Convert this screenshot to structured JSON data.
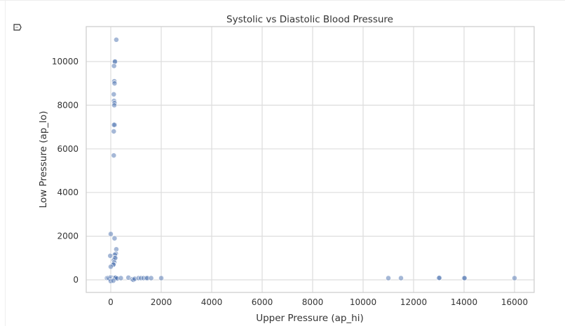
{
  "chart_data": {
    "type": "scatter",
    "title": "Systolic vs Diastolic Blood Pressure",
    "xlabel": "Upper Pressure (ap_hi)",
    "ylabel": "Low Pressure (ap_lo)",
    "xlim": [
      -1000,
      17000
    ],
    "ylim": [
      -600,
      11500
    ],
    "xticks": [
      0,
      2000,
      4000,
      6000,
      8000,
      10000,
      12000,
      14000,
      16000
    ],
    "yticks": [
      0,
      2000,
      4000,
      6000,
      8000,
      10000
    ],
    "grid": true,
    "color": "#4c72b0",
    "points": [
      [
        220,
        11000
      ],
      [
        150,
        10000
      ],
      [
        170,
        10000
      ],
      [
        130,
        9800
      ],
      [
        140,
        9100
      ],
      [
        150,
        9000
      ],
      [
        120,
        8500
      ],
      [
        130,
        8200
      ],
      [
        150,
        8100
      ],
      [
        140,
        8000
      ],
      [
        160,
        7100
      ],
      [
        130,
        7100
      ],
      [
        120,
        6800
      ],
      [
        120,
        5700
      ],
      [
        0,
        2100
      ],
      [
        150,
        1900
      ],
      [
        220,
        1400
      ],
      [
        200,
        1200
      ],
      [
        160,
        1150
      ],
      [
        -20,
        1100
      ],
      [
        150,
        1000
      ],
      [
        120,
        900
      ],
      [
        180,
        1000
      ],
      [
        140,
        800
      ],
      [
        120,
        700
      ],
      [
        100,
        700
      ],
      [
        0,
        600
      ],
      [
        -150,
        80
      ],
      [
        -100,
        80
      ],
      [
        -50,
        60
      ],
      [
        0,
        120
      ],
      [
        50,
        100
      ],
      [
        100,
        90
      ],
      [
        140,
        80
      ],
      [
        160,
        100
      ],
      [
        180,
        80
      ],
      [
        200,
        100
      ],
      [
        250,
        60
      ],
      [
        0,
        -60
      ],
      [
        100,
        -40
      ],
      [
        400,
        80
      ],
      [
        700,
        100
      ],
      [
        850,
        30
      ],
      [
        900,
        0
      ],
      [
        950,
        50
      ],
      [
        1100,
        80
      ],
      [
        1200,
        80
      ],
      [
        1300,
        80
      ],
      [
        1400,
        80
      ],
      [
        1450,
        80
      ],
      [
        1600,
        80
      ],
      [
        2000,
        80
      ],
      [
        11000,
        80
      ],
      [
        11500,
        80
      ],
      [
        13000,
        80
      ],
      [
        13020,
        90
      ],
      [
        14000,
        80
      ],
      [
        14020,
        80
      ],
      [
        16000,
        80
      ]
    ]
  },
  "icons": {
    "corner": "tag-icon"
  }
}
